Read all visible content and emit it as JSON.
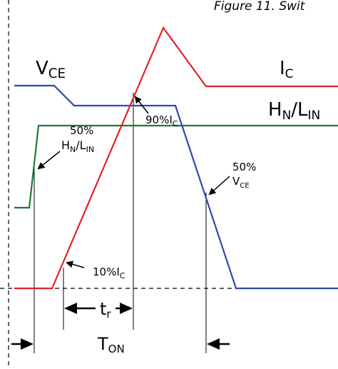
{
  "header": {
    "caption": "Figure 11. Swit"
  },
  "labels": {
    "vce": {
      "main": "V",
      "sub": "CE"
    },
    "ic": {
      "main": "I",
      "sub": "C"
    },
    "hn_ln": {
      "h": "H",
      "hsub": "N",
      "slash": "/L",
      "lsub": "IN"
    },
    "pct50_top": "50%",
    "pct50_hn": {
      "h": "H",
      "hsub": "N",
      "slash": "/L",
      "lsub": "IN"
    },
    "pct90": {
      "main": "90%I",
      "sub": "C"
    },
    "pct50_vce_top": "50%",
    "pct50_vce": {
      "main": "V",
      "sub": "CE"
    },
    "pct10": {
      "main": "10%I",
      "sub": "C"
    },
    "tr": {
      "main": "t",
      "sub": "r"
    },
    "ton": {
      "main": "T",
      "sub": "ON"
    }
  },
  "colors": {
    "vce": "#2c4aa6",
    "ic": "#e0232a",
    "input": "#1f7a3a",
    "black": "#000000"
  },
  "icons": [
    "arrow-left-icon",
    "arrow-right-icon"
  ]
}
